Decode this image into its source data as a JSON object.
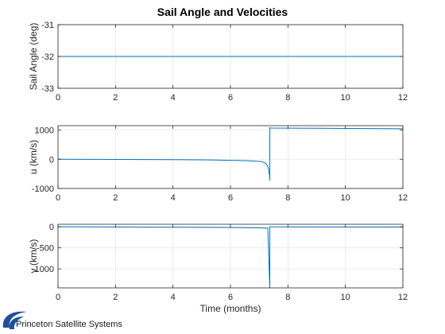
{
  "title": "Sail Angle and Velocities",
  "logo_text": "Princeton Satellite Systems",
  "colors": {
    "line": "#0072bd",
    "axis": "#262626",
    "grid": "#e5e5e5",
    "logo_swoosh": "#1f4e9c"
  },
  "chart_data": [
    {
      "type": "line",
      "title": "Sail Angle and Velocities",
      "xlabel": "",
      "ylabel": "Sail Angle (deg)",
      "xlim": [
        0,
        12
      ],
      "ylim": [
        -33,
        -31
      ],
      "xticks": [
        0,
        2,
        4,
        6,
        8,
        10,
        12
      ],
      "yticks": [
        -33,
        -32,
        -31
      ],
      "grid": true,
      "series": [
        {
          "x": [
            0,
            12
          ],
          "y": [
            -32,
            -32
          ]
        }
      ]
    },
    {
      "type": "line",
      "xlabel": "",
      "ylabel": "u (km/s)",
      "xlim": [
        0,
        12
      ],
      "ylim": [
        -1000,
        1150
      ],
      "xticks": [
        0,
        2,
        4,
        6,
        8,
        10,
        12
      ],
      "yticks": [
        -1000,
        0,
        1000
      ],
      "grid": true,
      "series": [
        {
          "x": [
            0,
            1,
            2,
            3,
            4,
            5,
            5.5,
            6,
            6.5,
            7,
            7.1,
            7.2,
            7.28,
            7.33,
            7.36,
            7.37,
            7.37,
            7.4,
            8,
            9,
            10,
            11,
            12
          ],
          "y": [
            0,
            -2,
            -5,
            -9,
            -14,
            -22,
            -28,
            -36,
            -48,
            -70,
            -85,
            -120,
            -200,
            -350,
            -550,
            -730,
            1080,
            1070,
            1065,
            1060,
            1055,
            1050,
            1045
          ]
        }
      ]
    },
    {
      "type": "line",
      "xlabel": "Time (months)",
      "ylabel": "v (km/s)",
      "xlim": [
        0,
        12
      ],
      "ylim": [
        -1450,
        60
      ],
      "xticks": [
        0,
        2,
        4,
        6,
        8,
        10,
        12
      ],
      "yticks": [
        -1000,
        -500,
        0
      ],
      "grid": true,
      "series": [
        {
          "x": [
            0,
            2,
            4,
            6,
            7,
            7.3,
            7.37,
            7.37,
            7.4,
            8,
            10,
            12
          ],
          "y": [
            0,
            -5,
            -10,
            -18,
            -25,
            -35,
            -1450,
            0,
            -2,
            -3,
            -5,
            -6
          ]
        }
      ]
    }
  ]
}
